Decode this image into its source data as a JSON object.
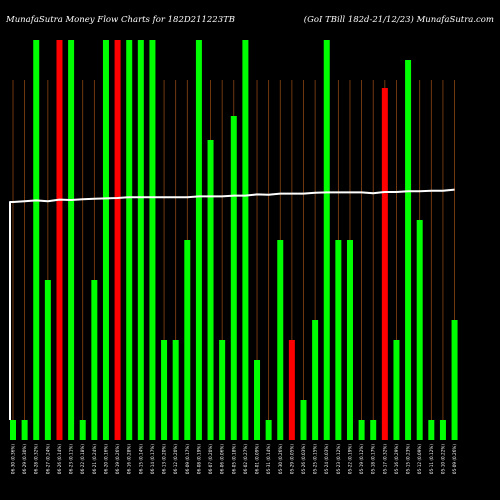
{
  "chart_data": {
    "type": "bar",
    "title_left": "MunafaSutra Money Flow Charts for 182D211223TB",
    "title_right": "(GoI TBill 182d-21/12/23) MunafaSutra.com",
    "colors": {
      "background": "#000000",
      "up": "#00ff00",
      "down": "#ff0000",
      "grid": "#8b4513",
      "line": "#ffffff",
      "text": "#ffffff"
    },
    "ylim": [
      0,
      100
    ],
    "categories": [
      "06-30 (0.36%)",
      "06-29 (0.30%)",
      "06-28 (0.32%)",
      "06-27 (0.24%)",
      "06-26 (0.14%)",
      "06-23 (0.11%)",
      "06-22 (0.18%)",
      "06-21 (0.24%)",
      "06-20 (0.16%)",
      "06-19 (0.26%)",
      "06-16 (0.28%)",
      "06-15 (0.14%)",
      "06-14 (0.17%)",
      "06-13 (0.20%)",
      "06-12 (0.20%)",
      "06-09 (0.17%)",
      "06-08 (0.19%)",
      "06-07 (0.20%)",
      "06-06 (0.06%)",
      "06-05 (0.18%)",
      "06-02 (0.27%)",
      "06-01 (0.09%)",
      "05-31 (0.14%)",
      "05-30 (0.26%)",
      "05-29 (0.05%)",
      "05-26 (0.03%)",
      "05-25 (0.15%)",
      "05-24 (0.03%)",
      "05-23 (0.12%)",
      "05-22 (0.19%)",
      "05-19 (0.12%)",
      "05-18 (0.17%)",
      "05-17 (0.32%)",
      "05-16 (0.29%)",
      "05-15 (0.23%)",
      "05-12 (0.09%)",
      "05-11 (0.12%)",
      "05-10 (0.22%)",
      "05-09 (0.26%)"
    ],
    "values": [
      5,
      5,
      100,
      40,
      100,
      100,
      5,
      40,
      100,
      100,
      100,
      100,
      100,
      25,
      25,
      50,
      100,
      75,
      25,
      81,
      100,
      20,
      5,
      50,
      25,
      10,
      30,
      100,
      50,
      50,
      5,
      5,
      88,
      25,
      95,
      55,
      5,
      5,
      30
    ],
    "directions": [
      "up",
      "up",
      "up",
      "up",
      "down",
      "up",
      "up",
      "up",
      "up",
      "down",
      "up",
      "up",
      "up",
      "up",
      "up",
      "up",
      "up",
      "up",
      "up",
      "up",
      "up",
      "up",
      "up",
      "up",
      "down",
      "up",
      "up",
      "up",
      "up",
      "up",
      "up",
      "up",
      "down",
      "up",
      "up",
      "up",
      "up",
      "up",
      "up"
    ],
    "line": [
      59.5,
      59.7,
      59.9,
      59.7,
      60.1,
      60.0,
      60.2,
      60.3,
      60.4,
      60.5,
      60.7,
      60.7,
      60.7,
      60.7,
      60.7,
      60.7,
      60.9,
      60.9,
      60.9,
      61.1,
      61.1,
      61.4,
      61.3,
      61.6,
      61.6,
      61.6,
      61.8,
      61.9,
      61.9,
      61.9,
      61.9,
      61.7,
      62.0,
      62.0,
      62.2,
      62.2,
      62.3,
      62.3,
      62.6
    ],
    "line_start": 5,
    "grid": true
  }
}
